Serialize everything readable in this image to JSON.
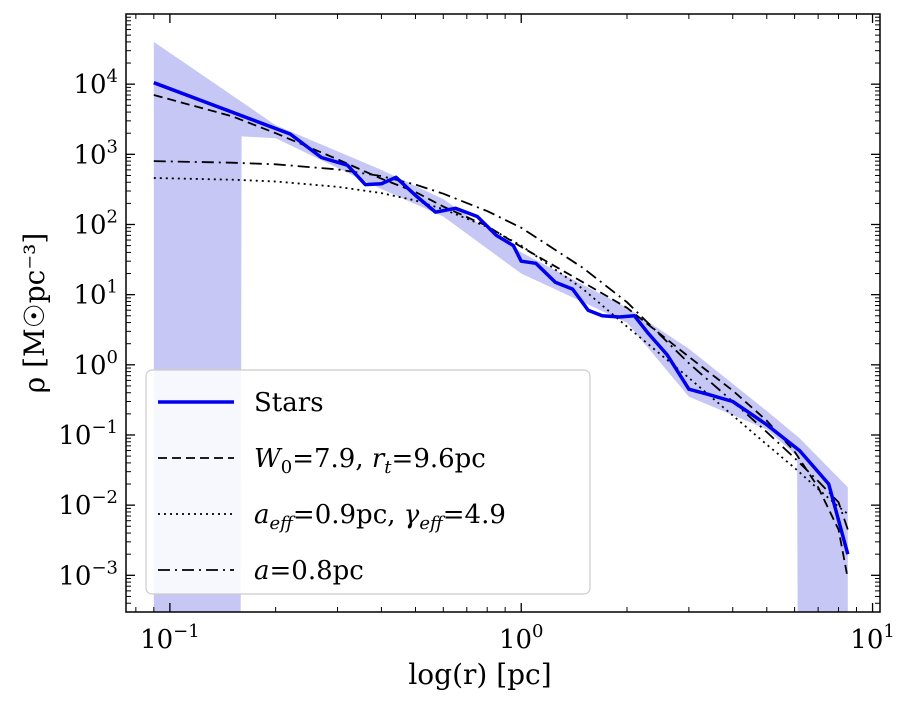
{
  "chart_data": {
    "type": "line",
    "xlabel": "log(r) [pc]",
    "ylabel": "ρ [M☉pc⁻³]",
    "x_scale": "log",
    "y_scale": "log",
    "xlim": [
      0.075,
      10.5
    ],
    "ylim": [
      0.0003,
      100000
    ],
    "x_ticks": [
      {
        "value": 0.1,
        "base": "10",
        "exp": "−1"
      },
      {
        "value": 1,
        "base": "10",
        "exp": "0"
      },
      {
        "value": 10,
        "base": "10",
        "exp": "1"
      }
    ],
    "y_ticks": [
      {
        "value": 0.001,
        "base": "10",
        "exp": "−3"
      },
      {
        "value": 0.01,
        "base": "10",
        "exp": "−2"
      },
      {
        "value": 0.1,
        "base": "10",
        "exp": "−1"
      },
      {
        "value": 1,
        "base": "10",
        "exp": "0"
      },
      {
        "value": 10,
        "base": "10",
        "exp": "1"
      },
      {
        "value": 100,
        "base": "10",
        "exp": "2"
      },
      {
        "value": 1000,
        "base": "10",
        "exp": "3"
      },
      {
        "value": 10000,
        "base": "10",
        "exp": "4"
      }
    ],
    "legend_position": "lower-left",
    "series": [
      {
        "name": "Stars",
        "style": "solid",
        "color": "#0000ee",
        "x": [
          0.09,
          0.22,
          0.27,
          0.32,
          0.36,
          0.4,
          0.44,
          0.5,
          0.57,
          0.65,
          0.75,
          0.85,
          0.95,
          1.0,
          1.1,
          1.25,
          1.4,
          1.55,
          1.7,
          1.9,
          2.1,
          2.3,
          2.6,
          3.0,
          3.4,
          4.0,
          5.0,
          6.2,
          7.5,
          8.5
        ],
        "y": [
          10500,
          1950,
          900,
          700,
          370,
          380,
          470,
          260,
          150,
          170,
          130,
          70,
          50,
          30,
          28,
          15,
          12,
          6,
          5,
          4.8,
          5,
          2.8,
          1.4,
          0.45,
          0.38,
          0.3,
          0.14,
          0.06,
          0.02,
          0.002
        ]
      },
      {
        "name": "W0=7.9, rt=9.6pc",
        "style": "dashed",
        "color": "#000000",
        "x": [
          0.09,
          0.15,
          0.2,
          0.3,
          0.4,
          0.5,
          0.6,
          0.8,
          1.0,
          1.5,
          2.0,
          3.0,
          4.0,
          5.0,
          6.0,
          7.0,
          8.0,
          8.5
        ],
        "y": [
          7000,
          3500,
          2000,
          850,
          450,
          290,
          180,
          95,
          48,
          15,
          6.5,
          1.3,
          0.43,
          0.16,
          0.058,
          0.018,
          0.0045,
          0.0009
        ]
      },
      {
        "name": "a_eff=0.9pc, γ_eff=4.9",
        "style": "dotted",
        "color": "#000000",
        "x": [
          0.09,
          0.15,
          0.2,
          0.3,
          0.4,
          0.5,
          0.6,
          0.8,
          1.0,
          1.5,
          2.0,
          3.0,
          4.0,
          5.0,
          6.0,
          7.0,
          8.0,
          8.5
        ],
        "y": [
          460,
          435,
          410,
          345,
          280,
          220,
          165,
          92,
          50,
          12,
          3.5,
          0.65,
          0.19,
          0.073,
          0.034,
          0.017,
          0.0095,
          0.0075
        ]
      },
      {
        "name": "a=0.8pc",
        "style": "dashdot",
        "color": "#000000",
        "x": [
          0.09,
          0.15,
          0.2,
          0.3,
          0.4,
          0.5,
          0.6,
          0.8,
          1.0,
          1.5,
          2.0,
          3.0,
          4.0,
          5.0,
          6.0,
          7.0,
          8.0,
          8.5
        ],
        "y": [
          800,
          760,
          720,
          610,
          490,
          370,
          275,
          155,
          90,
          24,
          7.8,
          1.05,
          0.3,
          0.11,
          0.047,
          0.022,
          0.011,
          0.0045
        ]
      }
    ],
    "band": {
      "name": "Stars uncertainty",
      "color": "#9999ee",
      "upper": {
        "x": [
          0.09,
          0.2,
          0.4,
          0.6,
          1.0,
          2.0,
          3.0,
          5.0,
          6.2,
          8.5
        ],
        "y": [
          40000,
          2600,
          600,
          230,
          40,
          6.5,
          1.7,
          0.22,
          0.09,
          0.018
        ]
      },
      "lower": {
        "x": [
          0.09,
          0.159,
          0.16,
          0.2,
          0.4,
          0.6,
          1.0,
          2.0,
          3.0,
          5.0,
          6.1,
          6.12,
          8.5
        ],
        "y": [
          0.0003,
          0.0003,
          1800,
          1700,
          320,
          130,
          20,
          4,
          0.35,
          0.12,
          0.05,
          0.0003,
          0.0003
        ]
      }
    },
    "legend": [
      {
        "label": "Stars",
        "style": "solid"
      },
      {
        "label_parts": [
          {
            "t": "W",
            "i": true
          },
          {
            "t": "0",
            "sub": true
          },
          {
            "t": "=7.9, "
          },
          {
            "t": "r",
            "i": true
          },
          {
            "t": "t",
            "sub": true,
            "i": true
          },
          {
            "t": "=9.6pc"
          }
        ],
        "style": "dashed"
      },
      {
        "label_parts": [
          {
            "t": "a",
            "i": true
          },
          {
            "t": "eff",
            "sub": true,
            "i": true
          },
          {
            "t": "=0.9pc, "
          },
          {
            "t": "γ",
            "i": true
          },
          {
            "t": "eff",
            "sub": true,
            "i": true
          },
          {
            "t": "=4.9"
          }
        ],
        "style": "dotted"
      },
      {
        "label_parts": [
          {
            "t": "a",
            "i": true
          },
          {
            "t": "=0.8pc"
          }
        ],
        "style": "dashdot"
      }
    ]
  }
}
